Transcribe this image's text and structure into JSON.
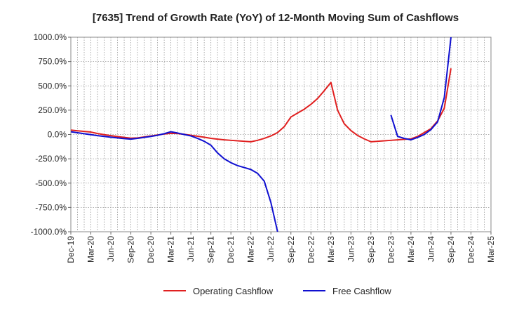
{
  "chart_data": {
    "type": "line",
    "title": "[7635]  Trend of Growth Rate (YoY) of 12-Month Moving Sum of Cashflows",
    "xlabel": "",
    "ylabel": "",
    "ylim": [
      -1000,
      1000
    ],
    "yticks": [
      "1000.0%",
      "750.0%",
      "500.0%",
      "250.0%",
      "0.0%",
      "-250.0%",
      "-500.0%",
      "-750.0%",
      "-1000.0%"
    ],
    "x_tick_labels": [
      "Dec-19",
      "Mar-20",
      "Jun-20",
      "Sep-20",
      "Dec-20",
      "Mar-21",
      "Jun-21",
      "Sep-21",
      "Dec-21",
      "Mar-22",
      "Jun-22",
      "Sep-22",
      "Dec-22",
      "Mar-23",
      "Jun-23",
      "Sep-23",
      "Dec-23",
      "Mar-24",
      "Jun-24",
      "Sep-24",
      "Dec-24",
      "Mar-25"
    ],
    "grid": true,
    "legend_position": "bottom-center",
    "series": [
      {
        "name": "Operating Cashflow",
        "color": "#e02020",
        "points": [
          [
            "Dec-19",
            45
          ],
          [
            "Jan-20",
            38
          ],
          [
            "Feb-20",
            32
          ],
          [
            "Mar-20",
            25
          ],
          [
            "Apr-20",
            10
          ],
          [
            "May-20",
            -2
          ],
          [
            "Jun-20",
            -12
          ],
          [
            "Jul-20",
            -22
          ],
          [
            "Aug-20",
            -30
          ],
          [
            "Sep-20",
            -38
          ],
          [
            "Oct-20",
            -35
          ],
          [
            "Nov-20",
            -25
          ],
          [
            "Dec-20",
            -15
          ],
          [
            "Jan-21",
            -5
          ],
          [
            "Feb-21",
            5
          ],
          [
            "Mar-21",
            12
          ],
          [
            "Apr-21",
            10
          ],
          [
            "May-21",
            2
          ],
          [
            "Jun-21",
            -8
          ],
          [
            "Jul-21",
            -18
          ],
          [
            "Aug-21",
            -28
          ],
          [
            "Sep-21",
            -40
          ],
          [
            "Oct-21",
            -48
          ],
          [
            "Nov-21",
            -55
          ],
          [
            "Dec-21",
            -60
          ],
          [
            "Jan-22",
            -65
          ],
          [
            "Feb-22",
            -70
          ],
          [
            "Mar-22",
            -75
          ],
          [
            "Apr-22",
            -60
          ],
          [
            "May-22",
            -40
          ],
          [
            "Jun-22",
            -15
          ],
          [
            "Jul-22",
            20
          ],
          [
            "Aug-22",
            80
          ],
          [
            "Sep-22",
            180
          ],
          [
            "Oct-22",
            220
          ],
          [
            "Nov-22",
            260
          ],
          [
            "Dec-22",
            310
          ],
          [
            "Jan-23",
            370
          ],
          [
            "Feb-23",
            450
          ],
          [
            "Mar-23",
            535
          ],
          [
            "Apr-23",
            250
          ],
          [
            "May-23",
            110
          ],
          [
            "Jun-23",
            40
          ],
          [
            "Jul-23",
            -10
          ],
          [
            "Aug-23",
            -45
          ],
          [
            "Sep-23",
            -75
          ],
          [
            "Oct-23",
            -70
          ],
          [
            "Nov-23",
            -65
          ],
          [
            "Dec-23",
            -60
          ],
          [
            "Jan-24",
            -55
          ],
          [
            "Feb-24",
            -50
          ],
          [
            "Mar-24",
            -45
          ],
          [
            "Apr-24",
            -20
          ],
          [
            "May-24",
            20
          ],
          [
            "Jun-24",
            60
          ],
          [
            "Jul-24",
            140
          ],
          [
            "Aug-24",
            270
          ],
          [
            "Sep-24",
            680
          ]
        ]
      },
      {
        "name": "Free Cashflow",
        "color": "#1010d0",
        "segments": [
          [
            [
              "Dec-19",
              28
            ],
            [
              "Jan-20",
              18
            ],
            [
              "Feb-20",
              8
            ],
            [
              "Mar-20",
              -2
            ],
            [
              "Apr-20",
              -12
            ],
            [
              "May-20",
              -20
            ],
            [
              "Jun-20",
              -28
            ],
            [
              "Jul-20",
              -35
            ],
            [
              "Aug-20",
              -42
            ],
            [
              "Sep-20",
              -48
            ],
            [
              "Oct-20",
              -40
            ],
            [
              "Nov-20",
              -30
            ],
            [
              "Dec-20",
              -20
            ],
            [
              "Jan-21",
              -8
            ],
            [
              "Feb-21",
              8
            ],
            [
              "Mar-21",
              28
            ],
            [
              "Apr-21",
              15
            ],
            [
              "May-21",
              0
            ],
            [
              "Jun-21",
              -15
            ],
            [
              "Jul-21",
              -40
            ],
            [
              "Aug-21",
              -70
            ],
            [
              "Sep-21",
              -110
            ],
            [
              "Oct-21",
              -190
            ],
            [
              "Nov-21",
              -250
            ],
            [
              "Dec-21",
              -290
            ],
            [
              "Jan-22",
              -320
            ],
            [
              "Feb-22",
              -340
            ],
            [
              "Mar-22",
              -360
            ],
            [
              "Apr-22",
              -400
            ],
            [
              "May-22",
              -480
            ],
            [
              "Jun-22",
              -700
            ],
            [
              "Jul-22",
              -1000
            ]
          ],
          [
            [
              "Dec-23",
              200
            ],
            [
              "Jan-24",
              -20
            ],
            [
              "Feb-24",
              -40
            ],
            [
              "Mar-24",
              -55
            ],
            [
              "Apr-24",
              -30
            ],
            [
              "May-24",
              0
            ],
            [
              "Jun-24",
              50
            ],
            [
              "Jul-24",
              130
            ],
            [
              "Aug-24",
              380
            ],
            [
              "Sep-24",
              1000
            ]
          ]
        ]
      }
    ]
  }
}
